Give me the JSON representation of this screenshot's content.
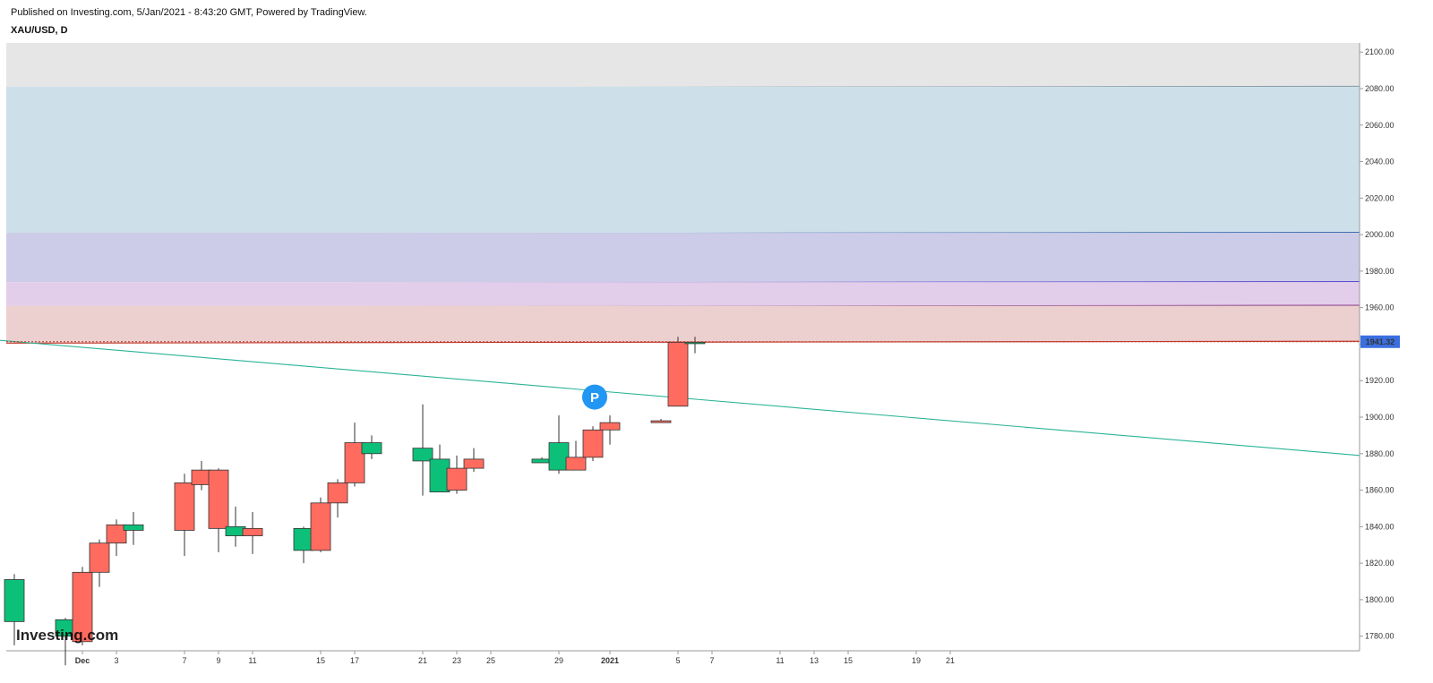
{
  "header": {
    "published": "Published on Investing.com, 5/Jan/2021 - 8:43:20 GMT, Powered by TradingView.",
    "symbol": "XAU/USD, D"
  },
  "watermark": "Investing.com",
  "colors": {
    "up": "#0dc07a",
    "down": "#ff6b5f",
    "trendline": "#2bb396",
    "price_tag": "#3b6fe0",
    "marker": "#2196f3"
  },
  "chart_data": {
    "type": "candlestick",
    "symbol": "XAU/USD",
    "interval": "D",
    "ylim": [
      1772,
      2105
    ],
    "y_ticks": [
      1780,
      1800,
      1820,
      1840,
      1860,
      1880,
      1900,
      1920,
      1940,
      1960,
      1980,
      2000,
      2020,
      2040,
      2060,
      2080,
      2100
    ],
    "x_ticks": [
      {
        "label": "Dec",
        "date": "2020-12-01",
        "bold": true
      },
      {
        "label": "3",
        "date": "2020-12-03"
      },
      {
        "label": "7",
        "date": "2020-12-07"
      },
      {
        "label": "9",
        "date": "2020-12-09"
      },
      {
        "label": "11",
        "date": "2020-12-11"
      },
      {
        "label": "15",
        "date": "2020-12-15"
      },
      {
        "label": "17",
        "date": "2020-12-17"
      },
      {
        "label": "21",
        "date": "2020-12-21"
      },
      {
        "label": "23",
        "date": "2020-12-23"
      },
      {
        "label": "25",
        "date": "2020-12-25"
      },
      {
        "label": "29",
        "date": "2020-12-29"
      },
      {
        "label": "2021",
        "date": "2021-01-01",
        "bold": true
      },
      {
        "label": "5",
        "date": "2021-01-05"
      },
      {
        "label": "7",
        "date": "2021-01-07"
      },
      {
        "label": "11",
        "date": "2021-01-11"
      },
      {
        "label": "13",
        "date": "2021-01-13"
      },
      {
        "label": "15",
        "date": "2021-01-15"
      },
      {
        "label": "19",
        "date": "2021-01-19"
      },
      {
        "label": "21",
        "date": "2021-01-21"
      }
    ],
    "candles": [
      {
        "date": "2020-11-27",
        "open": 1788,
        "high": 1814,
        "low": 1775,
        "close": 1811
      },
      {
        "date": "2020-11-30",
        "open": 1780,
        "high": 1790,
        "low": 1764,
        "close": 1789
      },
      {
        "date": "2020-12-01",
        "open": 1815,
        "high": 1818,
        "low": 1775,
        "close": 1777
      },
      {
        "date": "2020-12-02",
        "open": 1831,
        "high": 1833,
        "low": 1807,
        "close": 1815
      },
      {
        "date": "2020-12-03",
        "open": 1841,
        "high": 1844,
        "low": 1824,
        "close": 1831
      },
      {
        "date": "2020-12-04",
        "open": 1838,
        "high": 1848,
        "low": 1830,
        "close": 1841
      },
      {
        "date": "2020-12-07",
        "open": 1864,
        "high": 1869,
        "low": 1824,
        "close": 1838
      },
      {
        "date": "2020-12-08",
        "open": 1871,
        "high": 1876,
        "low": 1860,
        "close": 1863
      },
      {
        "date": "2020-12-09",
        "open": 1871,
        "high": 1872,
        "low": 1826,
        "close": 1839
      },
      {
        "date": "2020-12-10",
        "open": 1835,
        "high": 1851,
        "low": 1829,
        "close": 1840
      },
      {
        "date": "2020-12-11",
        "open": 1839,
        "high": 1848,
        "low": 1825,
        "close": 1835
      },
      {
        "date": "2020-12-14",
        "open": 1827,
        "high": 1840,
        "low": 1820,
        "close": 1839
      },
      {
        "date": "2020-12-15",
        "open": 1853,
        "high": 1856,
        "low": 1826,
        "close": 1827
      },
      {
        "date": "2020-12-16",
        "open": 1864,
        "high": 1866,
        "low": 1845,
        "close": 1853
      },
      {
        "date": "2020-12-17",
        "open": 1886,
        "high": 1897,
        "low": 1862,
        "close": 1864
      },
      {
        "date": "2020-12-18",
        "open": 1880,
        "high": 1890,
        "low": 1877,
        "close": 1886
      },
      {
        "date": "2020-12-21",
        "open": 1876,
        "high": 1907,
        "low": 1857,
        "close": 1883
      },
      {
        "date": "2020-12-22",
        "open": 1859,
        "high": 1885,
        "low": 1859,
        "close": 1877
      },
      {
        "date": "2020-12-23",
        "open": 1872,
        "high": 1879,
        "low": 1858,
        "close": 1860
      },
      {
        "date": "2020-12-24",
        "open": 1877,
        "high": 1883,
        "low": 1870,
        "close": 1872
      },
      {
        "date": "2020-12-28",
        "open": 1875,
        "high": 1878,
        "low": 1875,
        "close": 1877
      },
      {
        "date": "2020-12-29",
        "open": 1871,
        "high": 1901,
        "low": 1869,
        "close": 1886
      },
      {
        "date": "2020-12-30",
        "open": 1878,
        "high": 1887,
        "low": 1871,
        "close": 1871
      },
      {
        "date": "2020-12-31",
        "open": 1893,
        "high": 1895,
        "low": 1876,
        "close": 1878
      },
      {
        "date": "2021-01-01",
        "open": 1897,
        "high": 1901,
        "low": 1885,
        "close": 1893
      },
      {
        "date": "2021-01-04",
        "open": 1898,
        "high": 1899,
        "low": 1897,
        "close": 1897
      },
      {
        "date": "2021-01-05",
        "open": 1941,
        "high": 1944,
        "low": 1906,
        "close": 1906
      },
      {
        "date": "2021-01-06",
        "open": 1941,
        "high": 1944,
        "low": 1935,
        "close": 1941
      }
    ],
    "last_price": "1941.32",
    "last_price_value": 1941.32,
    "fib_bands": [
      {
        "from": 2081,
        "to": 2105,
        "color": "#e6e6e6",
        "line": "#8a9aa6"
      },
      {
        "from": 2001,
        "to": 2081,
        "color": "#cde0ea",
        "line": "#3f6fb0"
      },
      {
        "from": 1974,
        "to": 2001,
        "color": "#cccce8",
        "line": "#5a4fcf"
      },
      {
        "from": 1961,
        "to": 1974,
        "color": "#e2cdea",
        "line": "#8a3f8a"
      },
      {
        "from": 1941.32,
        "to": 1961,
        "color": "#ecd0d0",
        "line": "#c0392b"
      }
    ],
    "trendline": {
      "from": {
        "date": "2020-11-25",
        "price": 1943
      },
      "to": {
        "date": "2021-01-21",
        "price": 1879
      }
    },
    "marker": {
      "label": "P",
      "date": "2020-12-31",
      "price": 1911
    }
  }
}
